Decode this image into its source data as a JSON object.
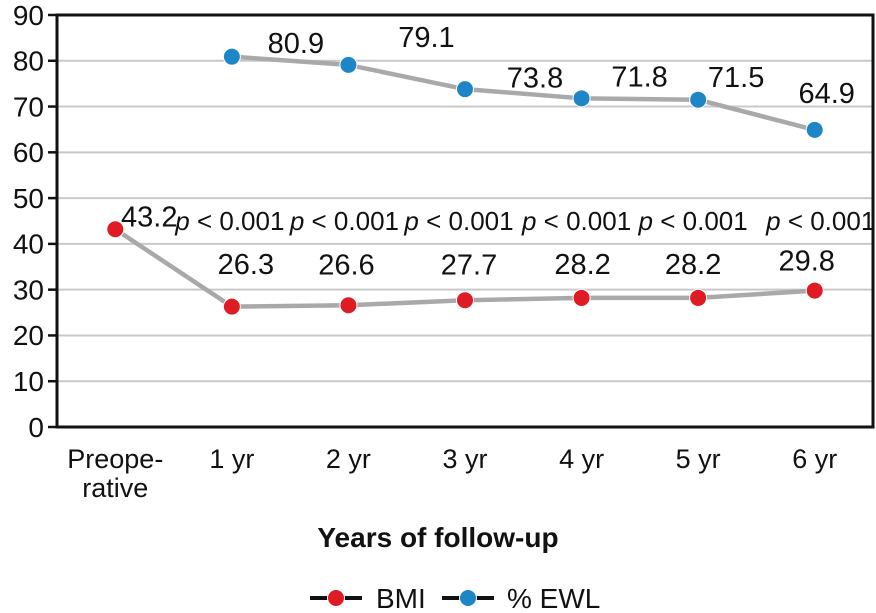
{
  "chart_data": {
    "type": "line",
    "title": "",
    "xlabel": "Years of follow-up",
    "ylabel": "",
    "ylim": [
      0,
      90
    ],
    "yticks": [
      0,
      10,
      20,
      30,
      40,
      50,
      60,
      70,
      80,
      90
    ],
    "grid": true,
    "grid_color": "#c9c9c9",
    "axis_color": "#111111",
    "line_color": "#a9a9a9",
    "legend_position": "bottom",
    "categories": [
      "Preoperative",
      "1 yr",
      "2 yr",
      "3 yr",
      "4 yr",
      "5 yr",
      "6 yr"
    ],
    "categories_display": [
      [
        "Preope-",
        "rative"
      ],
      [
        "1 yr"
      ],
      [
        "2 yr"
      ],
      [
        "3 yr"
      ],
      [
        "4 yr"
      ],
      [
        "5 yr"
      ],
      [
        "6 yr"
      ]
    ],
    "series": [
      {
        "name": "BMI",
        "marker_color": "#df1b24",
        "values": [
          43.2,
          26.3,
          26.6,
          27.7,
          28.2,
          28.2,
          29.8
        ]
      },
      {
        "name": "% EWL",
        "marker_color": "#1e86c7",
        "values": [
          null,
          80.9,
          79.1,
          73.8,
          71.8,
          71.5,
          64.9
        ]
      }
    ],
    "p_annotations": {
      "prefix_italic": "p",
      "rest": " < 0.001",
      "x_indices": [
        1,
        2,
        3,
        4,
        5,
        6
      ],
      "y_value": 45
    },
    "layout_hints": {
      "label_offsets": [
        [
          [
            34,
            -13
          ],
          [
            14,
            -43
          ],
          [
            -2,
            -41
          ],
          [
            4,
            -36
          ],
          [
            1,
            -34
          ],
          [
            -5,
            -34
          ],
          [
            -8,
            -30
          ]
        ],
        [
          null,
          [
            64,
            -14
          ],
          [
            78,
            -28
          ],
          [
            70,
            -12
          ],
          [
            58,
            -22
          ],
          [
            38,
            -23
          ],
          [
            12,
            -37
          ]
        ]
      ],
      "p_dx": [
        -2,
        -4,
        -6,
        -5,
        -5,
        6
      ]
    }
  },
  "legend": {
    "items": [
      {
        "label": "BMI",
        "color": "#df1b24"
      },
      {
        "label": "% EWL",
        "color": "#1e86c7"
      }
    ]
  }
}
